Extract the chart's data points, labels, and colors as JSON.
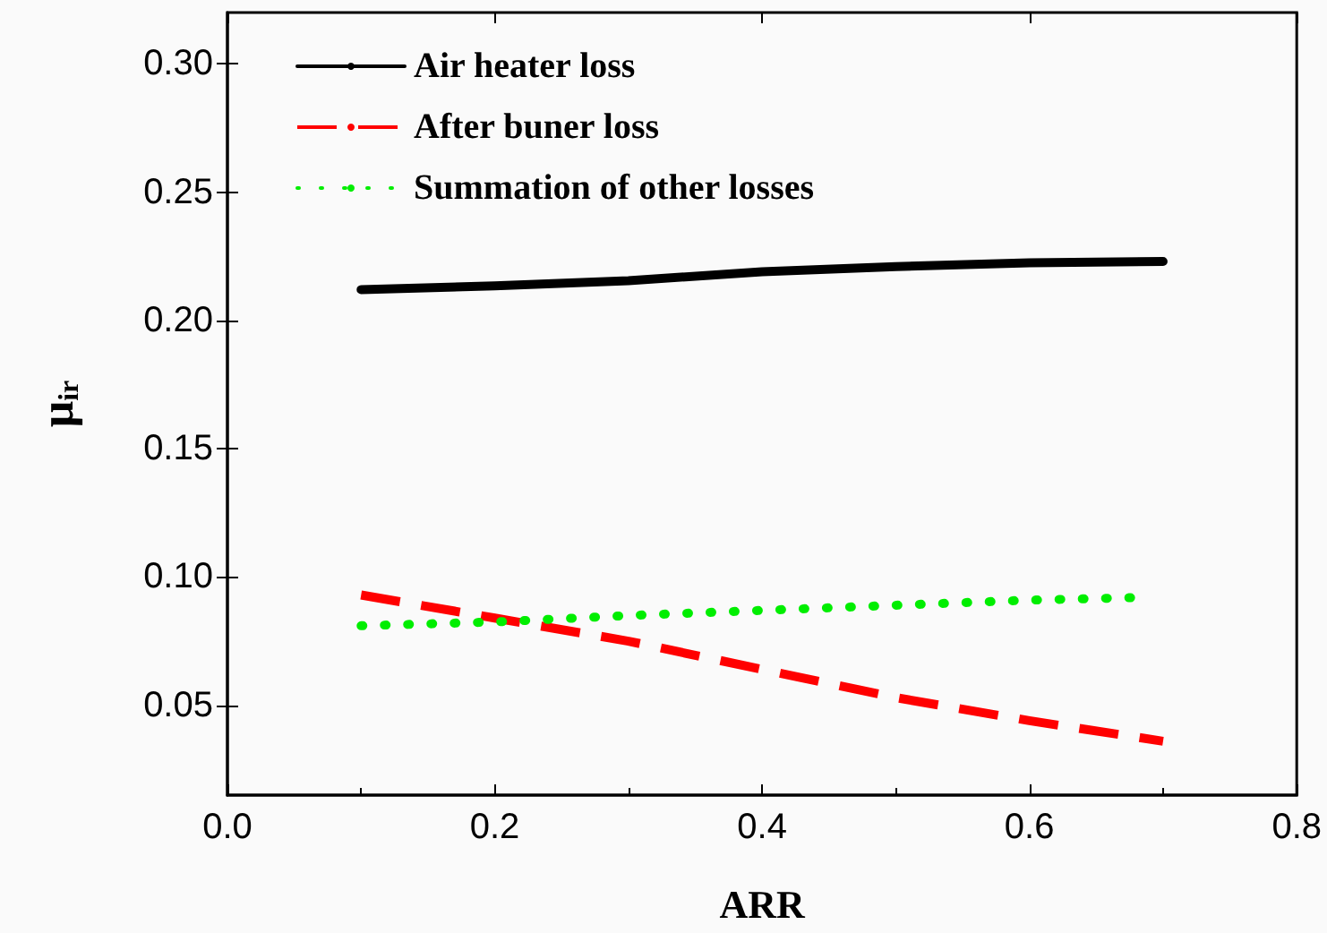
{
  "chart_data": {
    "type": "line",
    "xlabel": "ARR",
    "ylabel": "μ$_{ir}$",
    "x": [
      0.1,
      0.2,
      0.3,
      0.4,
      0.5,
      0.6,
      0.7
    ],
    "series": [
      {
        "name": "Air heater loss",
        "color": "#000000",
        "line_style": "solid",
        "values": [
          0.212,
          0.2135,
          0.2155,
          0.219,
          0.221,
          0.2225,
          0.223
        ]
      },
      {
        "name": "After buner loss",
        "color": "#ff0000",
        "line_style": "dashed",
        "values": [
          0.093,
          0.084,
          0.075,
          0.064,
          0.053,
          0.044,
          0.036
        ]
      },
      {
        "name": "Summation of other losses",
        "color": "#00ee00",
        "line_style": "dotted",
        "x": [
          0.1,
          0.2,
          0.3,
          0.4,
          0.5,
          0.6,
          0.68
        ],
        "values": [
          0.081,
          0.0825,
          0.085,
          0.087,
          0.089,
          0.091,
          0.092
        ]
      }
    ],
    "xlim": [
      0,
      0.8
    ],
    "xticks": [
      {
        "value": 0,
        "label": "0.0"
      },
      0.2,
      0.4,
      0.6,
      0.8
    ],
    "ylim": [
      0.015,
      0.32
    ],
    "yticks": [
      0.05,
      {
        "value": 0.1,
        "label": "0.10"
      },
      0.15,
      {
        "value": 0.2,
        "label": "0.20"
      },
      0.25,
      {
        "value": 0.3,
        "label": "0.30"
      }
    ],
    "grid": false,
    "legend": "top left",
    "marker": "none"
  }
}
